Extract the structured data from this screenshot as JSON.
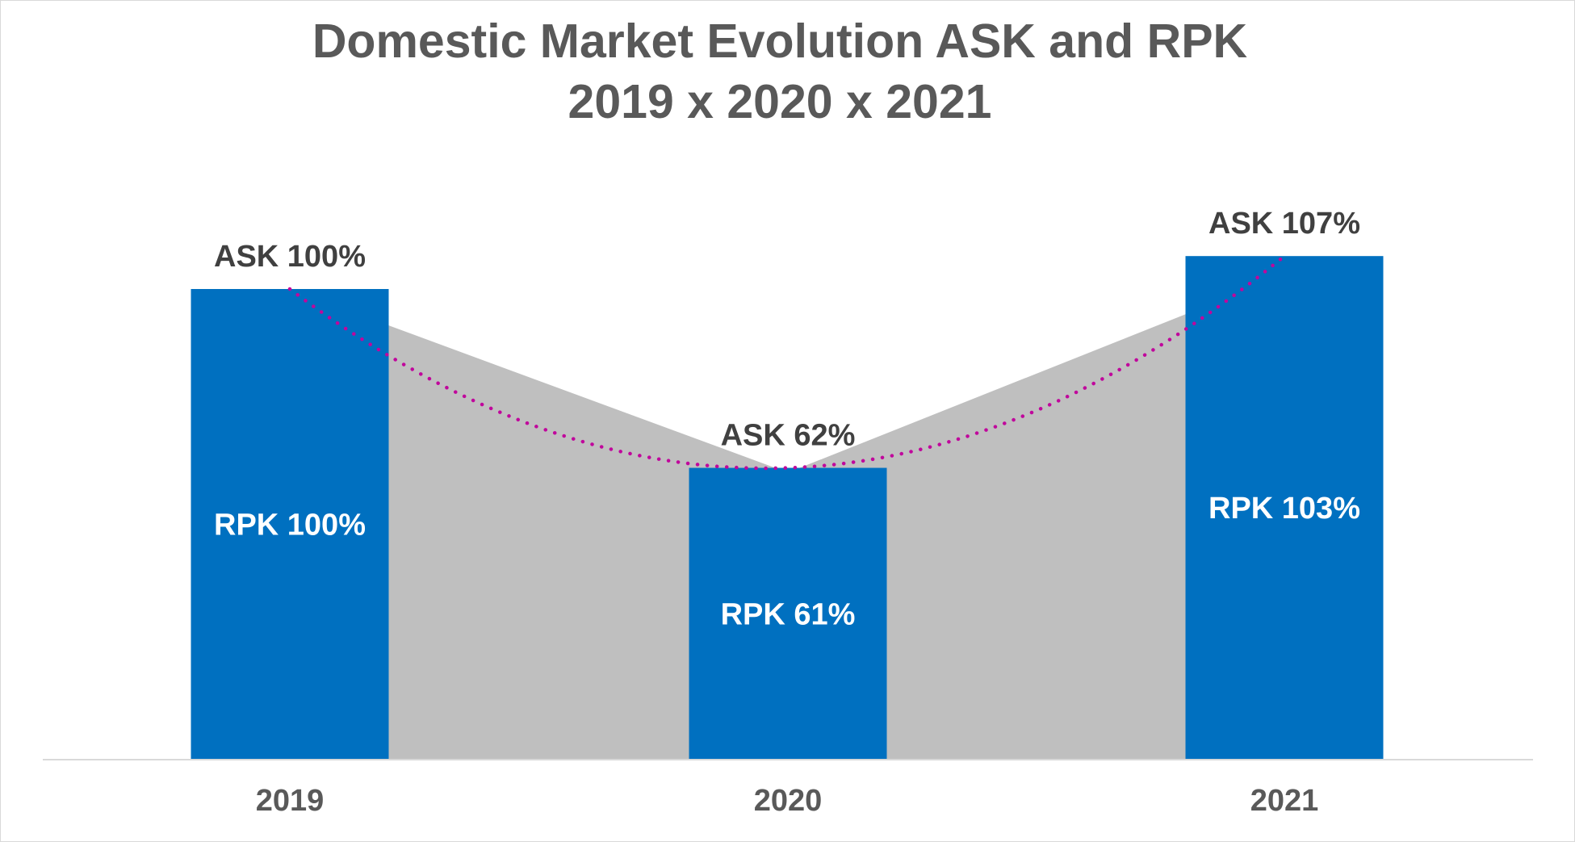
{
  "chart_data": {
    "type": "bar",
    "title_lines": [
      "Domestic Market Evolution ASK and RPK",
      "2019 x 2020 x 2021"
    ],
    "categories": [
      "2019",
      "2020",
      "2021"
    ],
    "series": [
      {
        "name": "ASK",
        "values": [
          100,
          62,
          107
        ],
        "labels": [
          "ASK 100%",
          "ASK 62%",
          "ASK 107%"
        ],
        "trendline": "polynomial"
      },
      {
        "name": "RPK",
        "values": [
          100,
          61,
          103
        ],
        "labels": [
          "RPK 100%",
          "RPK 61%",
          "RPK 103%"
        ]
      }
    ],
    "ylim": [
      0,
      110
    ],
    "grid": false,
    "legend": "none",
    "colors": {
      "bar": "#0070c0",
      "area": "#bfbfbf",
      "trendline": "#c0079c",
      "axis": "#d9d9d9"
    }
  }
}
